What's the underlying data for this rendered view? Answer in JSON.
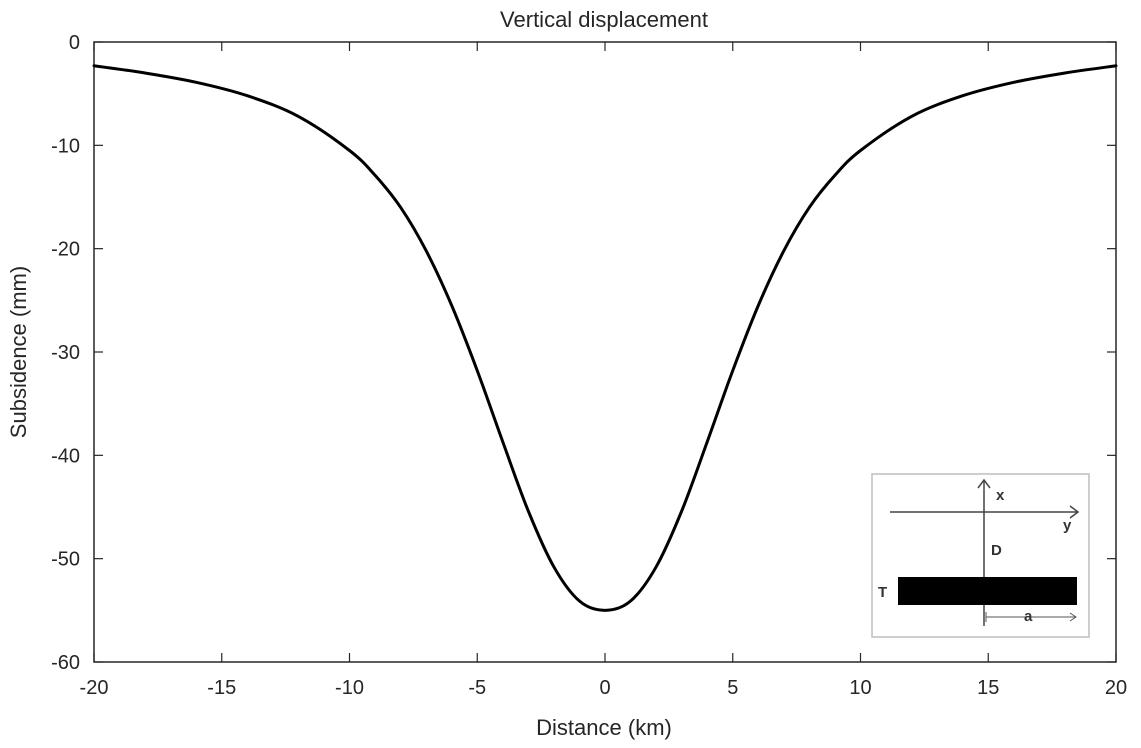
{
  "chart_data": {
    "type": "line",
    "title": "Vertical displacement",
    "xlabel": "Distance (km)",
    "ylabel": "Subsidence (mm)",
    "xlim": [
      -20,
      20
    ],
    "ylim": [
      -60,
      0
    ],
    "xticks": [
      -20,
      -15,
      -10,
      -5,
      0,
      5,
      10,
      15,
      20
    ],
    "yticks": [
      0,
      -10,
      -20,
      -30,
      -40,
      -50,
      -60
    ],
    "grid": false,
    "legend": "none",
    "series": [
      {
        "color": "#000000",
        "x": [
          -20,
          -18,
          -16,
          -14,
          -12,
          -10,
          -9,
          -8,
          -7,
          -6,
          -5,
          -4,
          -3,
          -2,
          -1,
          0,
          1,
          2,
          3,
          4,
          5,
          6,
          7,
          8,
          9,
          10,
          12,
          14,
          16,
          18,
          20
        ],
        "y": [
          -2.3,
          -3.0,
          -3.9,
          -5.2,
          -7.2,
          -10.5,
          -12.9,
          -16.0,
          -20.2,
          -25.5,
          -31.8,
          -38.7,
          -45.4,
          -50.8,
          -54.1,
          -55.0,
          -54.1,
          -50.8,
          -45.4,
          -38.7,
          -31.8,
          -25.5,
          -20.2,
          -16.0,
          -12.9,
          -10.5,
          -7.2,
          -5.2,
          -3.9,
          -3.0,
          -2.3
        ]
      }
    ]
  },
  "inset": {
    "label_x": "x",
    "label_y": "y",
    "label_d": "D",
    "label_t": "T",
    "label_a": "a"
  }
}
